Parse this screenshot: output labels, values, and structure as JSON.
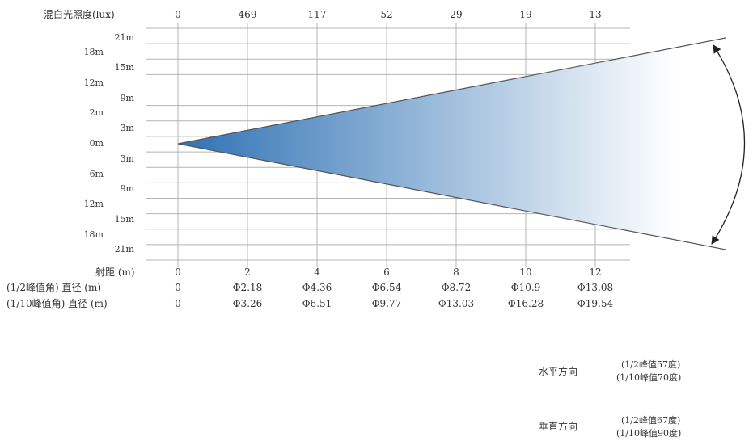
{
  "chart_data": {
    "type": "line",
    "title": "",
    "lux_label": "混白光照度(lux)",
    "lux_values": [
      "0",
      "469",
      "117",
      "52",
      "29",
      "19",
      "13"
    ],
    "distance_label": "射距 (m)",
    "x": [
      0,
      2,
      4,
      6,
      8,
      10,
      12
    ],
    "x_tick_labels": [
      "0",
      "2",
      "4",
      "6",
      "8",
      "10",
      "12"
    ],
    "xlim": [
      0,
      13
    ],
    "y_tick_labels_outer": [
      "18m",
      "12m",
      "2m",
      "0m",
      "6m",
      "12m",
      "18m"
    ],
    "y_tick_labels_inner": [
      "21m",
      "15m",
      "9m",
      "3m",
      "3m",
      "9m",
      "15m",
      "21m"
    ],
    "half_peak_label": "(1/2峰值角) 直径 (m)",
    "half_peak_diameters": [
      "0",
      "Φ2.18",
      "Φ4.36",
      "Φ6.54",
      "Φ8.72",
      "Φ10.9",
      "Φ13.08"
    ],
    "tenth_peak_label": "(1/10峰值角) 直径 (m)",
    "tenth_peak_diameters": [
      "0",
      "Φ3.26",
      "Φ6.51",
      "Φ9.77",
      "Φ13.03",
      "Φ16.28",
      "Φ19.54"
    ],
    "beam_gradient_colors": [
      "#2f72b4",
      "#ffffff"
    ],
    "grid": true
  },
  "legend": {
    "horizontal": {
      "label": "水平方向",
      "half": "(1/2峰值57度)",
      "tenth": "(1/10峰值70度)"
    },
    "vertical": {
      "label": "垂直方向",
      "half": "(1/2峰值67度)",
      "tenth": "(1/10峰值90度)"
    }
  }
}
